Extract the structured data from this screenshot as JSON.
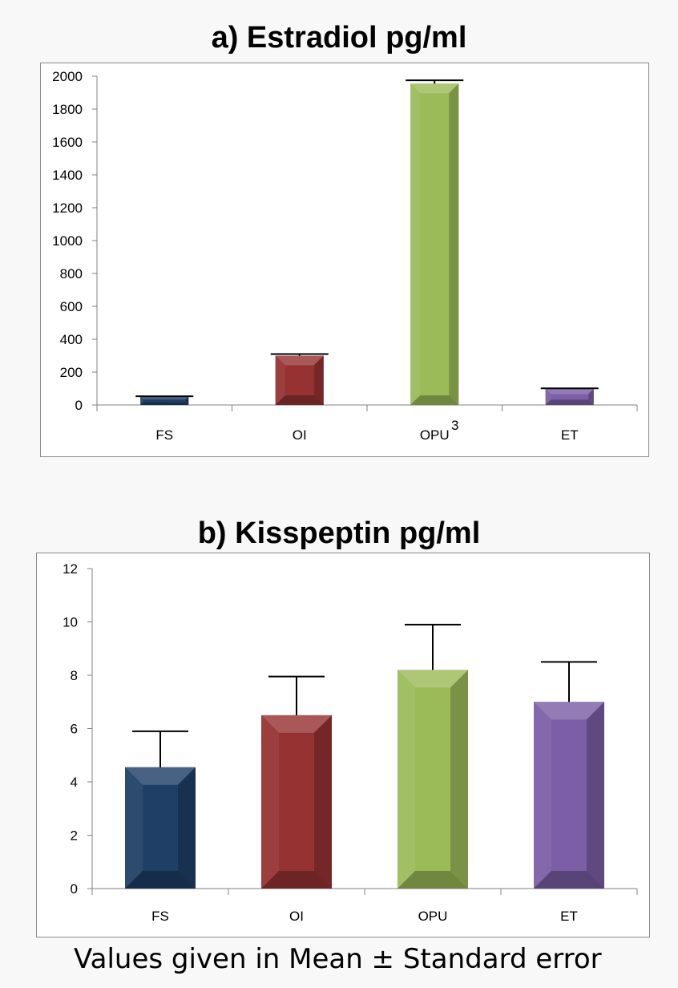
{
  "footnote": "Values given in Mean ± Standard error",
  "artifact_text": "3",
  "colors": {
    "FS": "#1f3f66",
    "OI": "#963232",
    "OPU": "#9bbb59",
    "ET": "#7b5ea6"
  },
  "chart_data": [
    {
      "type": "bar",
      "title": "a) Estradiol pg/ml",
      "categories": [
        "FS",
        "OI",
        "OPU",
        "ET"
      ],
      "values": [
        50,
        300,
        1955,
        98
      ],
      "errors": [
        3,
        10,
        20,
        3
      ],
      "ylim": [
        0,
        2000
      ],
      "yticks": [
        0,
        200,
        400,
        600,
        800,
        1000,
        1200,
        1400,
        1600,
        1800,
        2000
      ],
      "ytick_labels": [
        "0",
        "200",
        "400",
        "600",
        "800",
        "1000",
        "1200",
        "1400",
        "1600",
        "1800",
        "2000"
      ],
      "xlabel": "",
      "ylabel": "",
      "grid": false
    },
    {
      "type": "bar",
      "title": "b) Kisspeptin pg/ml",
      "categories": [
        "FS",
        "OI",
        "OPU",
        "ET"
      ],
      "values": [
        4.55,
        6.5,
        8.2,
        7.0
      ],
      "errors": [
        1.35,
        1.45,
        1.7,
        1.5
      ],
      "ylim": [
        0,
        12
      ],
      "yticks": [
        0,
        2,
        4,
        6,
        8,
        10,
        12
      ],
      "ytick_labels": [
        "0",
        "2",
        "4",
        "6",
        "8",
        "10",
        "12"
      ],
      "xlabel": "",
      "ylabel": "",
      "grid": false
    }
  ]
}
